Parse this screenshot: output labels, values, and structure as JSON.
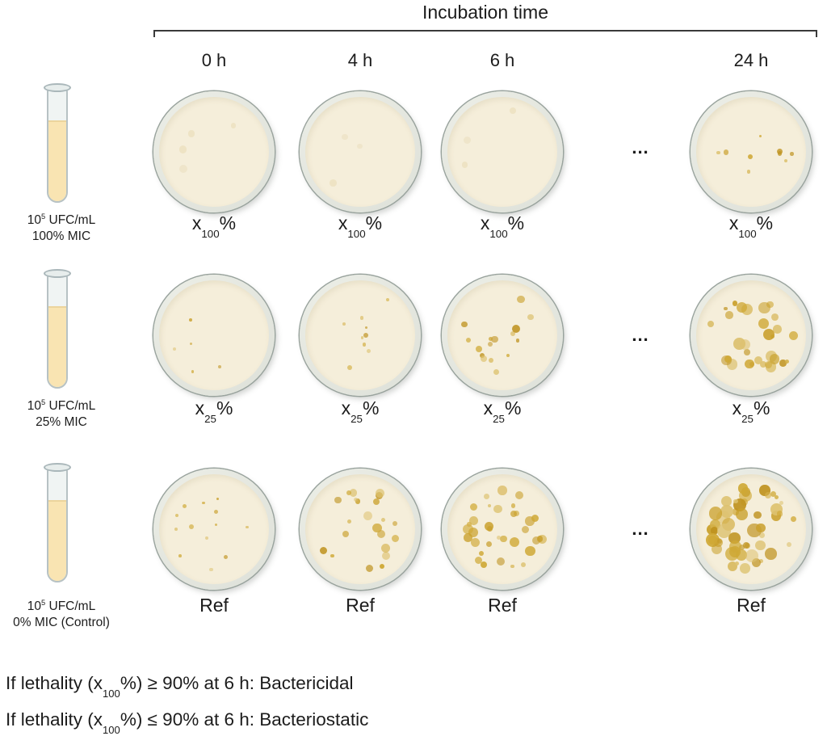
{
  "title": "Incubation time",
  "columns": [
    "0 h",
    "4 h",
    "6 h",
    "24 h"
  ],
  "ellipsis": "...",
  "colony_colors": {
    "normal": [
      "#c9a02c",
      "#d4b14a",
      "#bf9320",
      "#ddc270",
      "#cfa835"
    ],
    "faint": [
      "#eadfbd",
      "#e7dbb2"
    ]
  },
  "rows": [
    {
      "tube": {
        "base": "10",
        "sup": "5",
        "rest": " UFC/mL",
        "line2": "100% MIC"
      },
      "label": {
        "base": "x",
        "sub": "100",
        "suffix": "%"
      },
      "dishes": [
        {
          "count": 4,
          "rmin": 3,
          "rmax": 6,
          "seed": 11,
          "faint": true
        },
        {
          "count": 3,
          "rmin": 3,
          "rmax": 6,
          "seed": 22,
          "faint": true
        },
        {
          "count": 3,
          "rmin": 3,
          "rmax": 6,
          "seed": 33,
          "faint": true
        },
        {
          "count": 9,
          "rmin": 1.5,
          "rmax": 3.5,
          "seed": 44
        }
      ]
    },
    {
      "tube": {
        "base": "10",
        "sup": "5",
        "rest": " UFC/mL",
        "line2": "25% MIC"
      },
      "label": {
        "base": "x",
        "sub": "25",
        "suffix": "%"
      },
      "dishes": [
        {
          "count": 5,
          "rmin": 1.5,
          "rmax": 2.5,
          "seed": 55
        },
        {
          "count": 9,
          "rmin": 1.5,
          "rmax": 3,
          "seed": 66
        },
        {
          "count": 16,
          "rmin": 2,
          "rmax": 5.5,
          "seed": 77
        },
        {
          "count": 30,
          "rmin": 2,
          "rmax": 7.5,
          "seed": 88
        }
      ]
    },
    {
      "tube": {
        "base": "10",
        "sup": "5",
        "rest": " UFC/mL",
        "line2": "0% MIC (Control)"
      },
      "label": {
        "base": "Ref",
        "sub": "",
        "suffix": ""
      },
      "dishes": [
        {
          "count": 13,
          "rmin": 1.5,
          "rmax": 3,
          "seed": 99
        },
        {
          "count": 22,
          "rmin": 2,
          "rmax": 6,
          "seed": 110
        },
        {
          "count": 34,
          "rmin": 2,
          "rmax": 6.5,
          "seed": 121
        },
        {
          "count": 52,
          "rmin": 2.5,
          "rmax": 9,
          "seed": 132
        }
      ]
    }
  ],
  "footer": {
    "line1": {
      "pre": "If lethality (x",
      "sub": "100",
      "post": "%) ≥ 90% at 6 h: Bactericidal"
    },
    "line2": {
      "pre": "If lethality (x",
      "sub": "100",
      "post": "%) ≤ 90% at 6 h: Bacteriostatic"
    }
  },
  "cropped_fragment": "x"
}
